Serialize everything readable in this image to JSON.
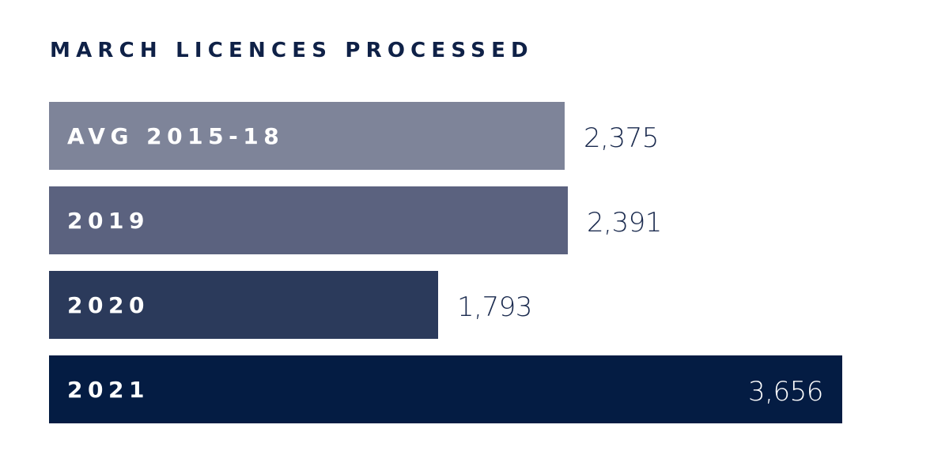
{
  "chart_data": {
    "type": "bar",
    "orientation": "horizontal",
    "title": "MARCH LICENCES PROCESSED",
    "categories": [
      "AVG 2015-18",
      "2019",
      "2020",
      "2021"
    ],
    "values": [
      2375,
      2391,
      1793,
      3656
    ],
    "value_labels": [
      "2,375",
      "2,391",
      "1,793",
      "3,656"
    ],
    "bar_colors": [
      "#7e8499",
      "#5b627f",
      "#2b3a5b",
      "#041c43"
    ],
    "value_label_color": "#1a2a4e",
    "value_label_inside_color": "#ffffff",
    "category_label_color": "#ffffff",
    "title_color": "#0f2147",
    "xlim": [
      0,
      3656
    ],
    "grid": false,
    "axes_visible": false,
    "legend": "none"
  }
}
